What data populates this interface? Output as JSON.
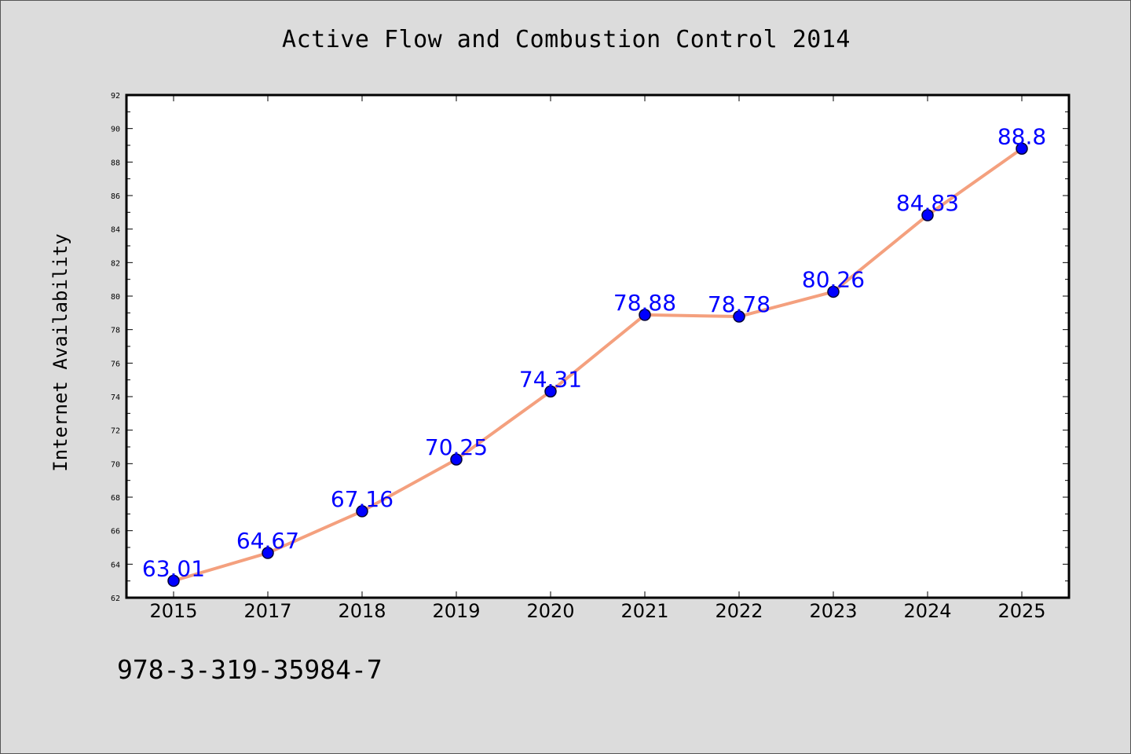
{
  "page": {
    "footer_text": "978-3-319-35984-7"
  },
  "colors": {
    "background": "#dcdcdc",
    "plot_background": "#ffffff",
    "line": "#f4a07e",
    "marker_fill": "#0000ff",
    "marker_stroke": "#000033",
    "data_label": "#0000ff"
  },
  "chart_data": {
    "type": "line",
    "title": "Active Flow and Combustion Control 2014",
    "xlabel": "",
    "ylabel": "Internet Availability",
    "categories": [
      "2015",
      "2017",
      "2018",
      "2019",
      "2020",
      "2021",
      "2022",
      "2023",
      "2024",
      "2025"
    ],
    "series": [
      {
        "values": [
          63.01,
          64.67,
          67.16,
          70.25,
          74.31,
          78.88,
          78.78,
          80.26,
          84.83,
          88.8
        ]
      }
    ],
    "data_labels": [
      "63.01",
      "64.67",
      "67.16",
      "70.25",
      "74.31",
      "78.88",
      "78.78",
      "80.26",
      "84.83",
      "88.8"
    ],
    "ylim": [
      62,
      92
    ],
    "yticks": [
      62,
      64,
      66,
      68,
      70,
      72,
      74,
      76,
      78,
      80,
      82,
      84,
      86,
      88,
      90,
      92
    ],
    "grid": false,
    "legend": "none",
    "marker": "circle"
  }
}
